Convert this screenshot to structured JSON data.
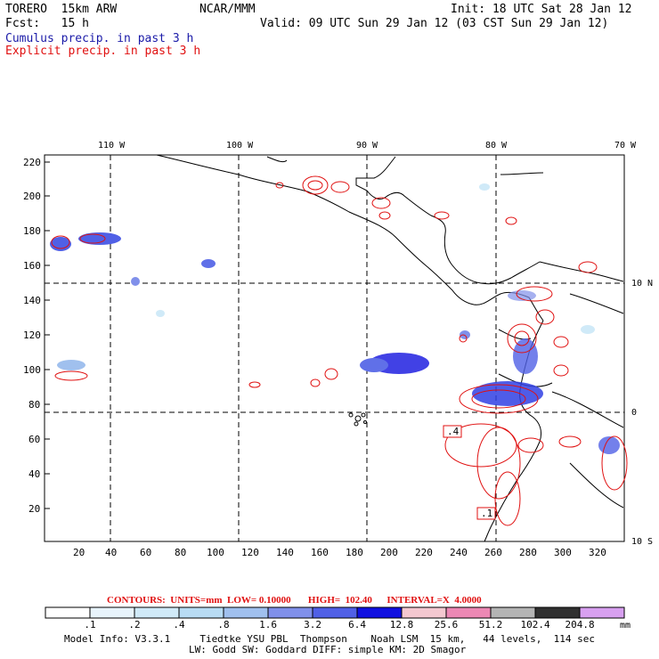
{
  "header": {
    "model": "TORERO  15km ARW",
    "org": "NCAR/MMM",
    "init": "Init: 18 UTC Sat 28 Jan 12",
    "fcst": "Fcst:   15 h",
    "valid": "Valid: 09 UTC Sun 29 Jan 12 (03 CST Sun 29 Jan 12)",
    "legend_cumulus": "Cumulus precip. in past 3 h",
    "legend_explicit": "Explicit precip. in past 3 h"
  },
  "axes": {
    "top_lon_labels": [
      "110 W",
      "100 W",
      "90 W",
      "80 W",
      "70 W"
    ],
    "right_lat_labels": [
      "10 N",
      "0",
      "10 S"
    ],
    "left_ticks": [
      "220",
      "200",
      "180",
      "160",
      "140",
      "120",
      "100",
      "80",
      "60",
      "40",
      "20"
    ],
    "bottom_ticks": [
      "20",
      "40",
      "60",
      "80",
      "100",
      "120",
      "140",
      "160",
      "180",
      "200",
      "220",
      "240",
      "260",
      "280",
      "300",
      "320"
    ]
  },
  "contours_line": "CONTOURS:  UNITS=mm  LOW= 0.10000       HIGH=  102.40      INTERVAL=X  4.0000",
  "colorbar": {
    "labels": [
      ".1",
      ".2",
      ".4",
      ".8",
      "1.6",
      "3.2",
      "6.4",
      "12.8",
      "25.6",
      "51.2",
      "102.4",
      "204.8"
    ],
    "unit": "mm",
    "colors": [
      "#ffffff",
      "#e8f4fc",
      "#d0eaf8",
      "#b8dcf4",
      "#a0c0ee",
      "#8090ea",
      "#5060e6",
      "#1010e0",
      "#f4c8d0",
      "#ec88b4",
      "#b4b4b4",
      "#303030",
      "#d8a0f0"
    ]
  },
  "footer": {
    "line1": "Model Info: V3.3.1     Tiedtke YSU PBL  Thompson    Noah LSM  15 km,   44 levels,  114 sec",
    "line2": "LW: Godd SW: Goddard DIFF: simple KM: 2D Smagor"
  },
  "box_labels": [
    ".4",
    ".1"
  ],
  "map_features": [
    "Central America coastline",
    "South America coastline",
    "Galapagos Islands"
  ],
  "colors": {
    "cumulus": "#1a1aa8",
    "explicit": "#e01010"
  }
}
